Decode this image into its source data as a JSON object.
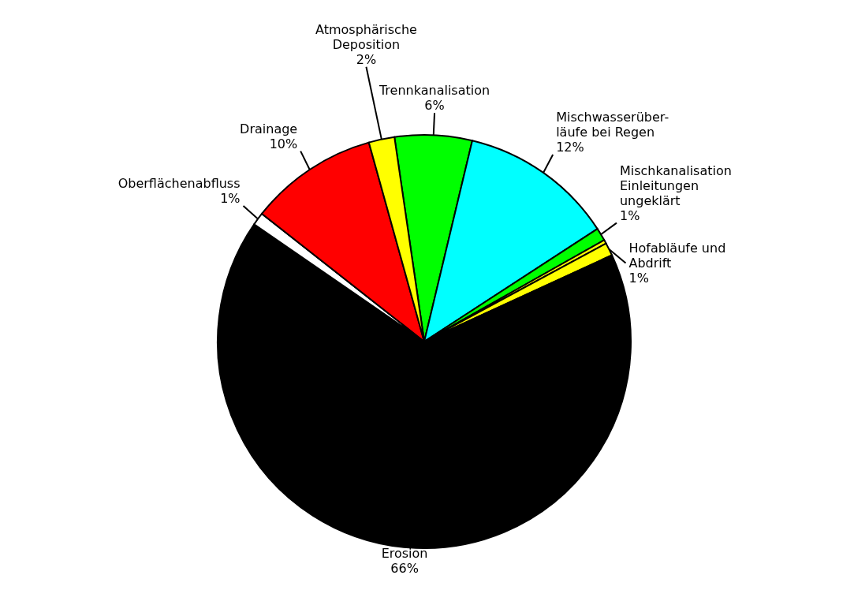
{
  "chart_data": {
    "type": "pie",
    "categories": [
      "Trennkanalisation",
      "Mischwasserüber-\nläufe bei Regen",
      "Mischkanalisation\nEinleitungen\nungeklärt",
      null,
      "Hofabläufe und\nAbdrift",
      "Erosion",
      "Oberflächenabfluss",
      "Drainage",
      "Atmosphärische\nDeposition"
    ],
    "values": [
      6,
      12,
      1,
      0.3,
      1,
      66,
      1,
      10,
      2
    ],
    "value_labels": [
      "6%",
      "12%",
      "1%",
      null,
      "1%",
      "66%",
      "1%",
      "10%",
      "2%"
    ],
    "colors": [
      "#00ff00",
      "#00ffff",
      "#00ff00",
      "#ffff00",
      "#ffff00",
      "#000000",
      "#ffffff",
      "#ff0000",
      "#ffff00"
    ]
  }
}
